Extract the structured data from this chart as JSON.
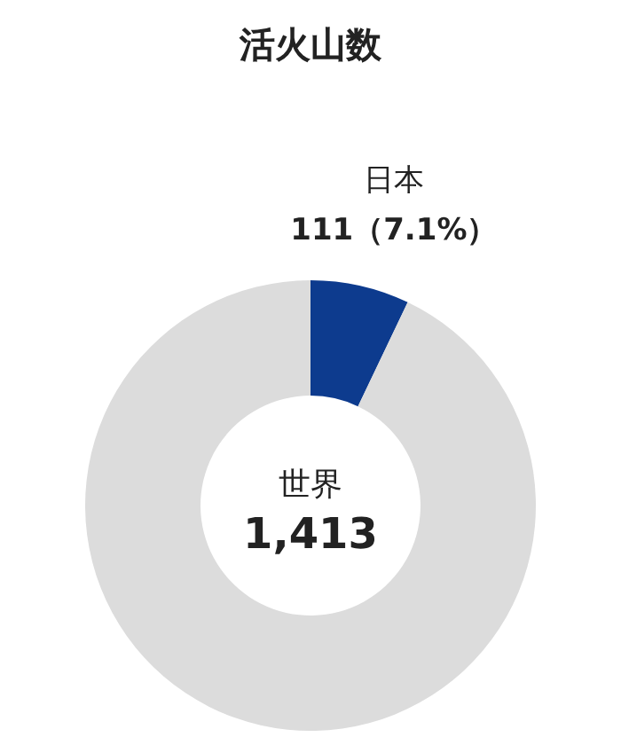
{
  "chart_data": {
    "type": "donut",
    "title": "活火山数",
    "categories": [
      "日本",
      null
    ],
    "values": [
      7.1,
      92.9
    ],
    "colors": [
      "#0d3b8e",
      "#dcdcdc"
    ],
    "value_labels": [
      "111（7.1%）",
      null
    ],
    "annotations": [
      "世界",
      "1,413"
    ]
  }
}
